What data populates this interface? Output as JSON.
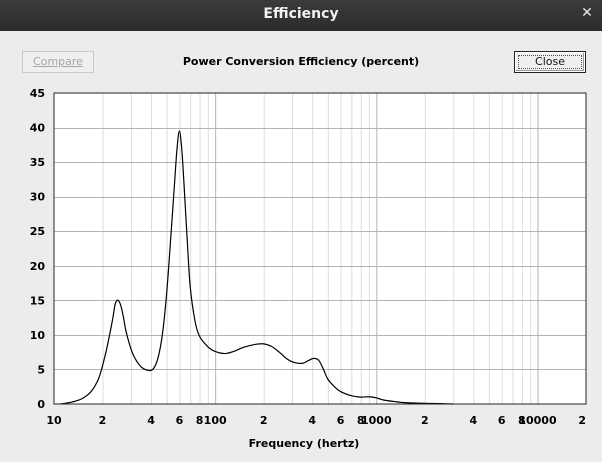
{
  "window": {
    "title": "Efficiency",
    "close_icon": "close-icon"
  },
  "toolbar": {
    "compare_label": "Compare",
    "close_label": "Close"
  },
  "chart_data": {
    "type": "line",
    "title": "Power Conversion Efficiency (percent)",
    "xlabel": "Frequency (hertz)",
    "ylabel": "",
    "xscale": "log",
    "xlim": [
      10,
      20000
    ],
    "ylim": [
      0,
      45
    ],
    "grid": true,
    "x_tick_labels": [
      {
        "value": 10,
        "label": "10"
      },
      {
        "value": 20,
        "label": "2"
      },
      {
        "value": 40,
        "label": "4"
      },
      {
        "value": 60,
        "label": "6"
      },
      {
        "value": 80,
        "label": "8"
      },
      {
        "value": 100,
        "label": "100"
      },
      {
        "value": 200,
        "label": "2"
      },
      {
        "value": 400,
        "label": "4"
      },
      {
        "value": 600,
        "label": "6"
      },
      {
        "value": 800,
        "label": "8"
      },
      {
        "value": 1000,
        "label": "1000"
      },
      {
        "value": 2000,
        "label": "2"
      },
      {
        "value": 4000,
        "label": "4"
      },
      {
        "value": 6000,
        "label": "6"
      },
      {
        "value": 8000,
        "label": "8"
      },
      {
        "value": 10000,
        "label": "10000"
      },
      {
        "value": 20000,
        "label": "2"
      }
    ],
    "y_ticks": [
      0,
      5,
      10,
      15,
      20,
      25,
      30,
      35,
      40,
      45
    ],
    "series": [
      {
        "color": "#000000",
        "x": [
          11,
          13,
          15,
          17,
          19,
          21,
          23,
          24,
          25,
          26,
          27,
          28,
          30,
          32,
          35,
          38,
          41,
          44,
          47,
          50,
          53,
          56,
          58,
          60,
          62,
          64,
          67,
          70,
          75,
          80,
          90,
          100,
          115,
          130,
          150,
          175,
          200,
          225,
          250,
          280,
          310,
          350,
          380,
          410,
          440,
          470,
          500,
          550,
          600,
          700,
          800,
          900,
          1000,
          1100,
          1300,
          1500,
          2000,
          2500,
          3000
        ],
        "y": [
          0,
          0.3,
          0.8,
          1.8,
          3.8,
          7.5,
          12,
          14.5,
          15,
          14.2,
          12.5,
          10.5,
          8,
          6.5,
          5.3,
          4.9,
          5,
          6.5,
          10,
          16,
          24,
          32,
          37,
          39.5,
          37,
          32,
          24,
          17,
          12,
          9.8,
          8.3,
          7.6,
          7.3,
          7.6,
          8.2,
          8.6,
          8.7,
          8.3,
          7.5,
          6.5,
          6,
          5.9,
          6.3,
          6.6,
          6.3,
          5,
          3.6,
          2.5,
          1.8,
          1.2,
          1,
          1.05,
          0.9,
          0.6,
          0.35,
          0.2,
          0.1,
          0.05,
          0
        ]
      }
    ]
  }
}
